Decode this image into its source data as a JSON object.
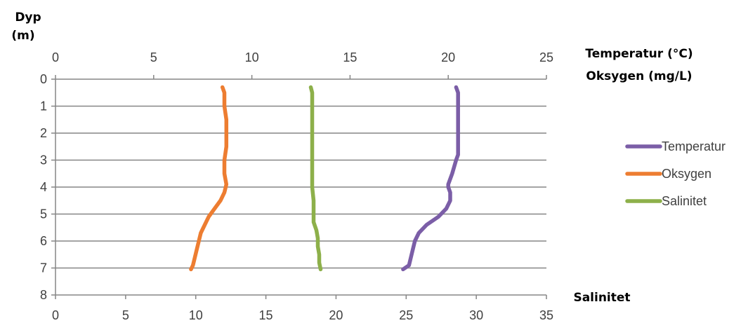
{
  "chart_data": {
    "type": "line",
    "y_axis": {
      "title_line1": "Dyp",
      "title_line2": "(m)",
      "range": [
        0,
        8
      ],
      "ticks": [
        "0",
        "1",
        "2",
        "3",
        "4",
        "5",
        "6",
        "7",
        "8"
      ],
      "reversed": true,
      "gridlines": true
    },
    "x_axis_top": {
      "title_line1": "Temperatur (°C)",
      "title_line2": "Oksygen (mg/L)",
      "range": [
        0,
        25
      ],
      "ticks": [
        "0",
        "5",
        "10",
        "15",
        "20",
        "25"
      ]
    },
    "x_axis_bottom": {
      "title": "Salinitet",
      "range": [
        0,
        35
      ],
      "ticks": [
        "0",
        "5",
        "10",
        "15",
        "20",
        "25",
        "30",
        "35"
      ]
    },
    "legend_position": "right",
    "series": [
      {
        "name": "Temperatur",
        "axis": "top",
        "color": "#7b5ea7",
        "points": [
          [
            20.4,
            0.3
          ],
          [
            20.5,
            0.5
          ],
          [
            20.5,
            1
          ],
          [
            20.5,
            1.5
          ],
          [
            20.5,
            2
          ],
          [
            20.5,
            2.5
          ],
          [
            20.5,
            2.8
          ],
          [
            20.4,
            3
          ],
          [
            20.2,
            3.5
          ],
          [
            20.0,
            3.9
          ],
          [
            20.0,
            4.0
          ],
          [
            20.1,
            4.2
          ],
          [
            20.1,
            4.5
          ],
          [
            19.9,
            4.8
          ],
          [
            19.5,
            5.1
          ],
          [
            18.9,
            5.4
          ],
          [
            18.5,
            5.7
          ],
          [
            18.3,
            6.0
          ],
          [
            18.2,
            6.3
          ],
          [
            18.1,
            6.6
          ],
          [
            18.0,
            6.9
          ],
          [
            17.7,
            7.05
          ]
        ]
      },
      {
        "name": "Oksygen",
        "axis": "top",
        "color": "#ed7d31",
        "points": [
          [
            8.5,
            0.3
          ],
          [
            8.6,
            0.5
          ],
          [
            8.6,
            1
          ],
          [
            8.7,
            1.5
          ],
          [
            8.7,
            2
          ],
          [
            8.7,
            2.5
          ],
          [
            8.6,
            3
          ],
          [
            8.6,
            3.5
          ],
          [
            8.7,
            3.9
          ],
          [
            8.6,
            4.2
          ],
          [
            8.4,
            4.5
          ],
          [
            8.1,
            4.8
          ],
          [
            7.8,
            5.1
          ],
          [
            7.6,
            5.4
          ],
          [
            7.4,
            5.7
          ],
          [
            7.3,
            6.0
          ],
          [
            7.2,
            6.3
          ],
          [
            7.1,
            6.6
          ],
          [
            7.0,
            6.9
          ],
          [
            6.9,
            7.05
          ]
        ]
      },
      {
        "name": "Salinitet",
        "axis": "bottom",
        "color": "#8db04a",
        "points": [
          [
            18.2,
            0.3
          ],
          [
            18.3,
            0.5
          ],
          [
            18.3,
            1
          ],
          [
            18.3,
            1.5
          ],
          [
            18.3,
            2
          ],
          [
            18.3,
            2.5
          ],
          [
            18.3,
            3
          ],
          [
            18.3,
            3.5
          ],
          [
            18.3,
            4
          ],
          [
            18.4,
            4.5
          ],
          [
            18.4,
            5.0
          ],
          [
            18.4,
            5.3
          ],
          [
            18.6,
            5.6
          ],
          [
            18.7,
            5.9
          ],
          [
            18.7,
            6.2
          ],
          [
            18.8,
            6.5
          ],
          [
            18.8,
            6.8
          ],
          [
            18.9,
            7.05
          ]
        ]
      }
    ]
  }
}
